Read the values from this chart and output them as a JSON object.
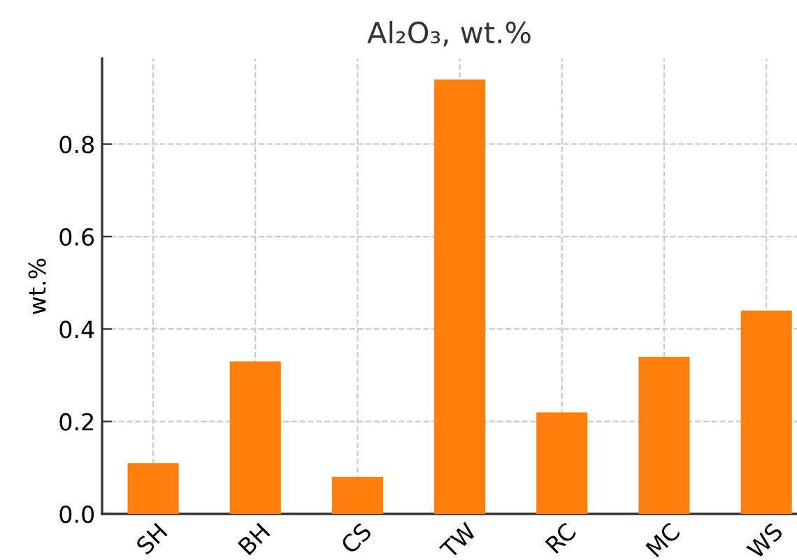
{
  "chart_data": {
    "type": "bar",
    "title": "Al₂O₃, wt.%",
    "ylabel": "wt.%",
    "categories": [
      "SH",
      "BH",
      "CS",
      "TW",
      "RC",
      "MC",
      "WS"
    ],
    "values": [
      0.11,
      0.33,
      0.08,
      0.94,
      0.22,
      0.34,
      0.44
    ],
    "color": "#ff7f0e",
    "ylim": [
      0,
      0.985
    ],
    "yticks": [
      {
        "value": 0,
        "label": "0.0"
      },
      0.2,
      0.4,
      0.6,
      0.8
    ],
    "grid": true
  }
}
